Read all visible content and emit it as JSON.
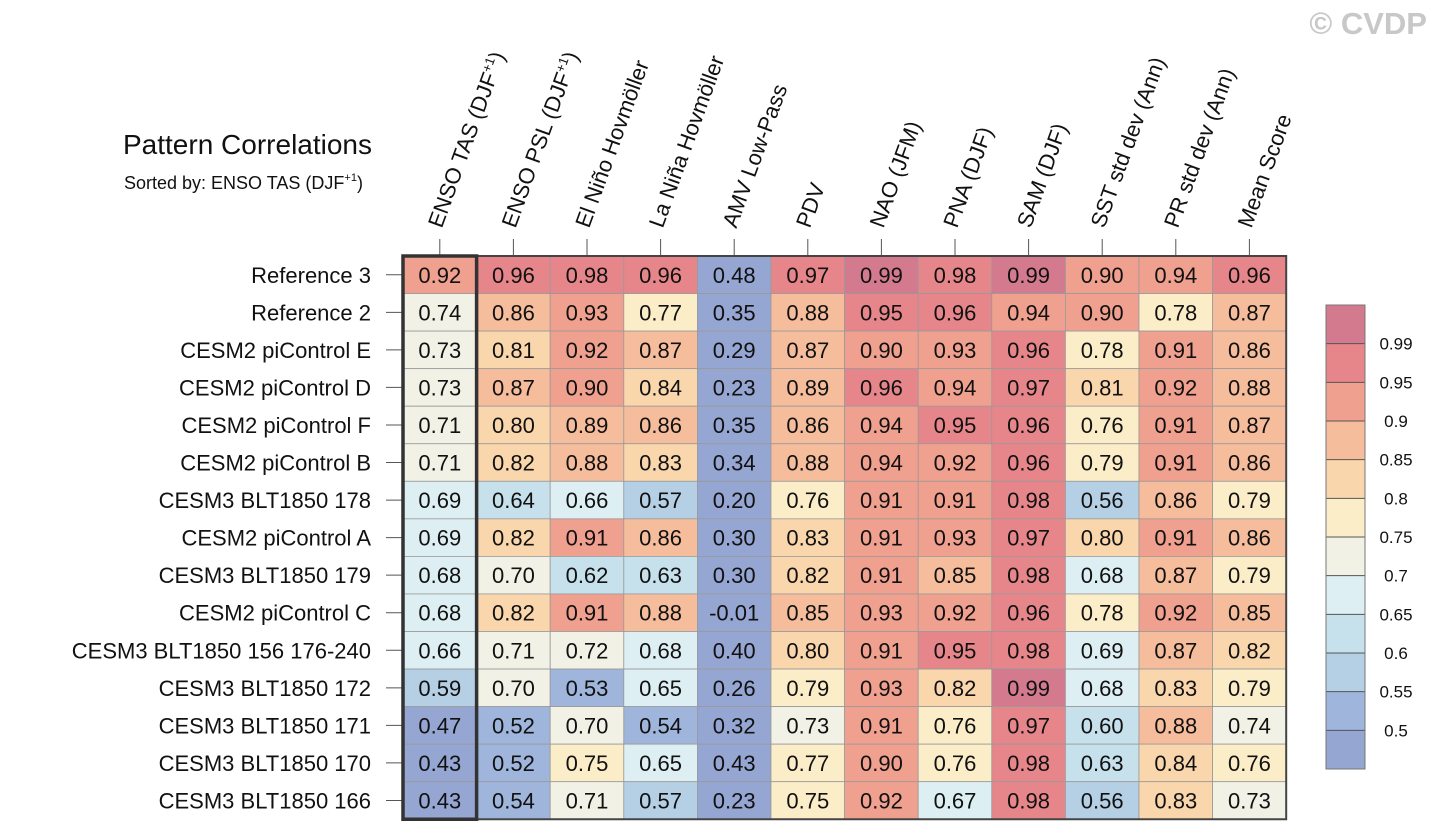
{
  "watermark": "© CVDP",
  "chart_data": {
    "type": "heatmap",
    "title": "Pattern Correlations",
    "subtitle": "Sorted by: ENSO TAS (DJF",
    "subtitle_sup": "+1",
    "subtitle_end": ")",
    "columns": [
      "ENSO TAS (DJF+1)",
      "ENSO PSL (DJF+1)",
      "El Niño Hovmöller",
      "La Niña Hovmöller",
      "AMV Low-Pass",
      "PDV",
      "NAO (JFM)",
      "PNA (DJF)",
      "SAM (DJF)",
      "SST std dev (Ann)",
      "PR std dev (Ann)",
      "Mean Score"
    ],
    "rows": [
      "Reference 3",
      "Reference 2",
      "CESM2 piControl E",
      "CESM2 piControl D",
      "CESM2 piControl F",
      "CESM2 piControl B",
      "CESM3 BLT1850 178",
      "CESM2 piControl A",
      "CESM3 BLT1850 179",
      "CESM2 piControl C",
      "CESM3 BLT1850 156 176-240",
      "CESM3 BLT1850 172",
      "CESM3 BLT1850 171",
      "CESM3 BLT1850 170",
      "CESM3 BLT1850 166"
    ],
    "values": [
      [
        0.92,
        0.96,
        0.98,
        0.96,
        0.48,
        0.97,
        0.99,
        0.98,
        0.99,
        0.9,
        0.94,
        0.96
      ],
      [
        0.74,
        0.86,
        0.93,
        0.77,
        0.35,
        0.88,
        0.95,
        0.96,
        0.94,
        0.9,
        0.78,
        0.87
      ],
      [
        0.73,
        0.81,
        0.92,
        0.87,
        0.29,
        0.87,
        0.9,
        0.93,
        0.96,
        0.78,
        0.91,
        0.86
      ],
      [
        0.73,
        0.87,
        0.9,
        0.84,
        0.23,
        0.89,
        0.96,
        0.94,
        0.97,
        0.81,
        0.92,
        0.88
      ],
      [
        0.71,
        0.8,
        0.89,
        0.86,
        0.35,
        0.86,
        0.94,
        0.95,
        0.96,
        0.76,
        0.91,
        0.87
      ],
      [
        0.71,
        0.82,
        0.88,
        0.83,
        0.34,
        0.88,
        0.94,
        0.92,
        0.96,
        0.79,
        0.91,
        0.86
      ],
      [
        0.69,
        0.64,
        0.66,
        0.57,
        0.2,
        0.76,
        0.91,
        0.91,
        0.98,
        0.56,
        0.86,
        0.79
      ],
      [
        0.69,
        0.82,
        0.91,
        0.86,
        0.3,
        0.83,
        0.91,
        0.93,
        0.97,
        0.8,
        0.91,
        0.86
      ],
      [
        0.68,
        0.7,
        0.62,
        0.63,
        0.3,
        0.82,
        0.91,
        0.85,
        0.98,
        0.68,
        0.87,
        0.79
      ],
      [
        0.68,
        0.82,
        0.91,
        0.88,
        -0.01,
        0.85,
        0.93,
        0.92,
        0.96,
        0.78,
        0.92,
        0.85
      ],
      [
        0.66,
        0.71,
        0.72,
        0.68,
        0.4,
        0.8,
        0.91,
        0.95,
        0.98,
        0.69,
        0.87,
        0.82
      ],
      [
        0.59,
        0.7,
        0.53,
        0.65,
        0.26,
        0.79,
        0.93,
        0.82,
        0.99,
        0.68,
        0.83,
        0.79
      ],
      [
        0.47,
        0.52,
        0.7,
        0.54,
        0.32,
        0.73,
        0.91,
        0.76,
        0.97,
        0.6,
        0.88,
        0.74
      ],
      [
        0.43,
        0.52,
        0.75,
        0.65,
        0.43,
        0.77,
        0.9,
        0.76,
        0.98,
        0.63,
        0.84,
        0.76
      ],
      [
        0.43,
        0.54,
        0.71,
        0.57,
        0.23,
        0.75,
        0.92,
        0.67,
        0.98,
        0.56,
        0.83,
        0.73
      ]
    ],
    "sorted_column_index": 0,
    "colorbar_levels": [
      "0.99",
      "0.95",
      "0.9",
      "0.85",
      "0.8",
      "0.75",
      "0.7",
      "0.65",
      "0.6",
      "0.55",
      "0.5"
    ],
    "colorbar_thresholds": [
      0.99,
      0.95,
      0.9,
      0.85,
      0.8,
      0.75,
      0.7,
      0.65,
      0.6,
      0.55,
      0.5
    ],
    "colorbar_colors": [
      "#d47a8f",
      "#e6868a",
      "#f0a08e",
      "#f6bd9c",
      "#fad6ad",
      "#fbedc8",
      "#f1f1e6",
      "#ddeff3",
      "#c7e1ec",
      "#b5cfe4",
      "#9fb5dc",
      "#96a6d3"
    ]
  }
}
